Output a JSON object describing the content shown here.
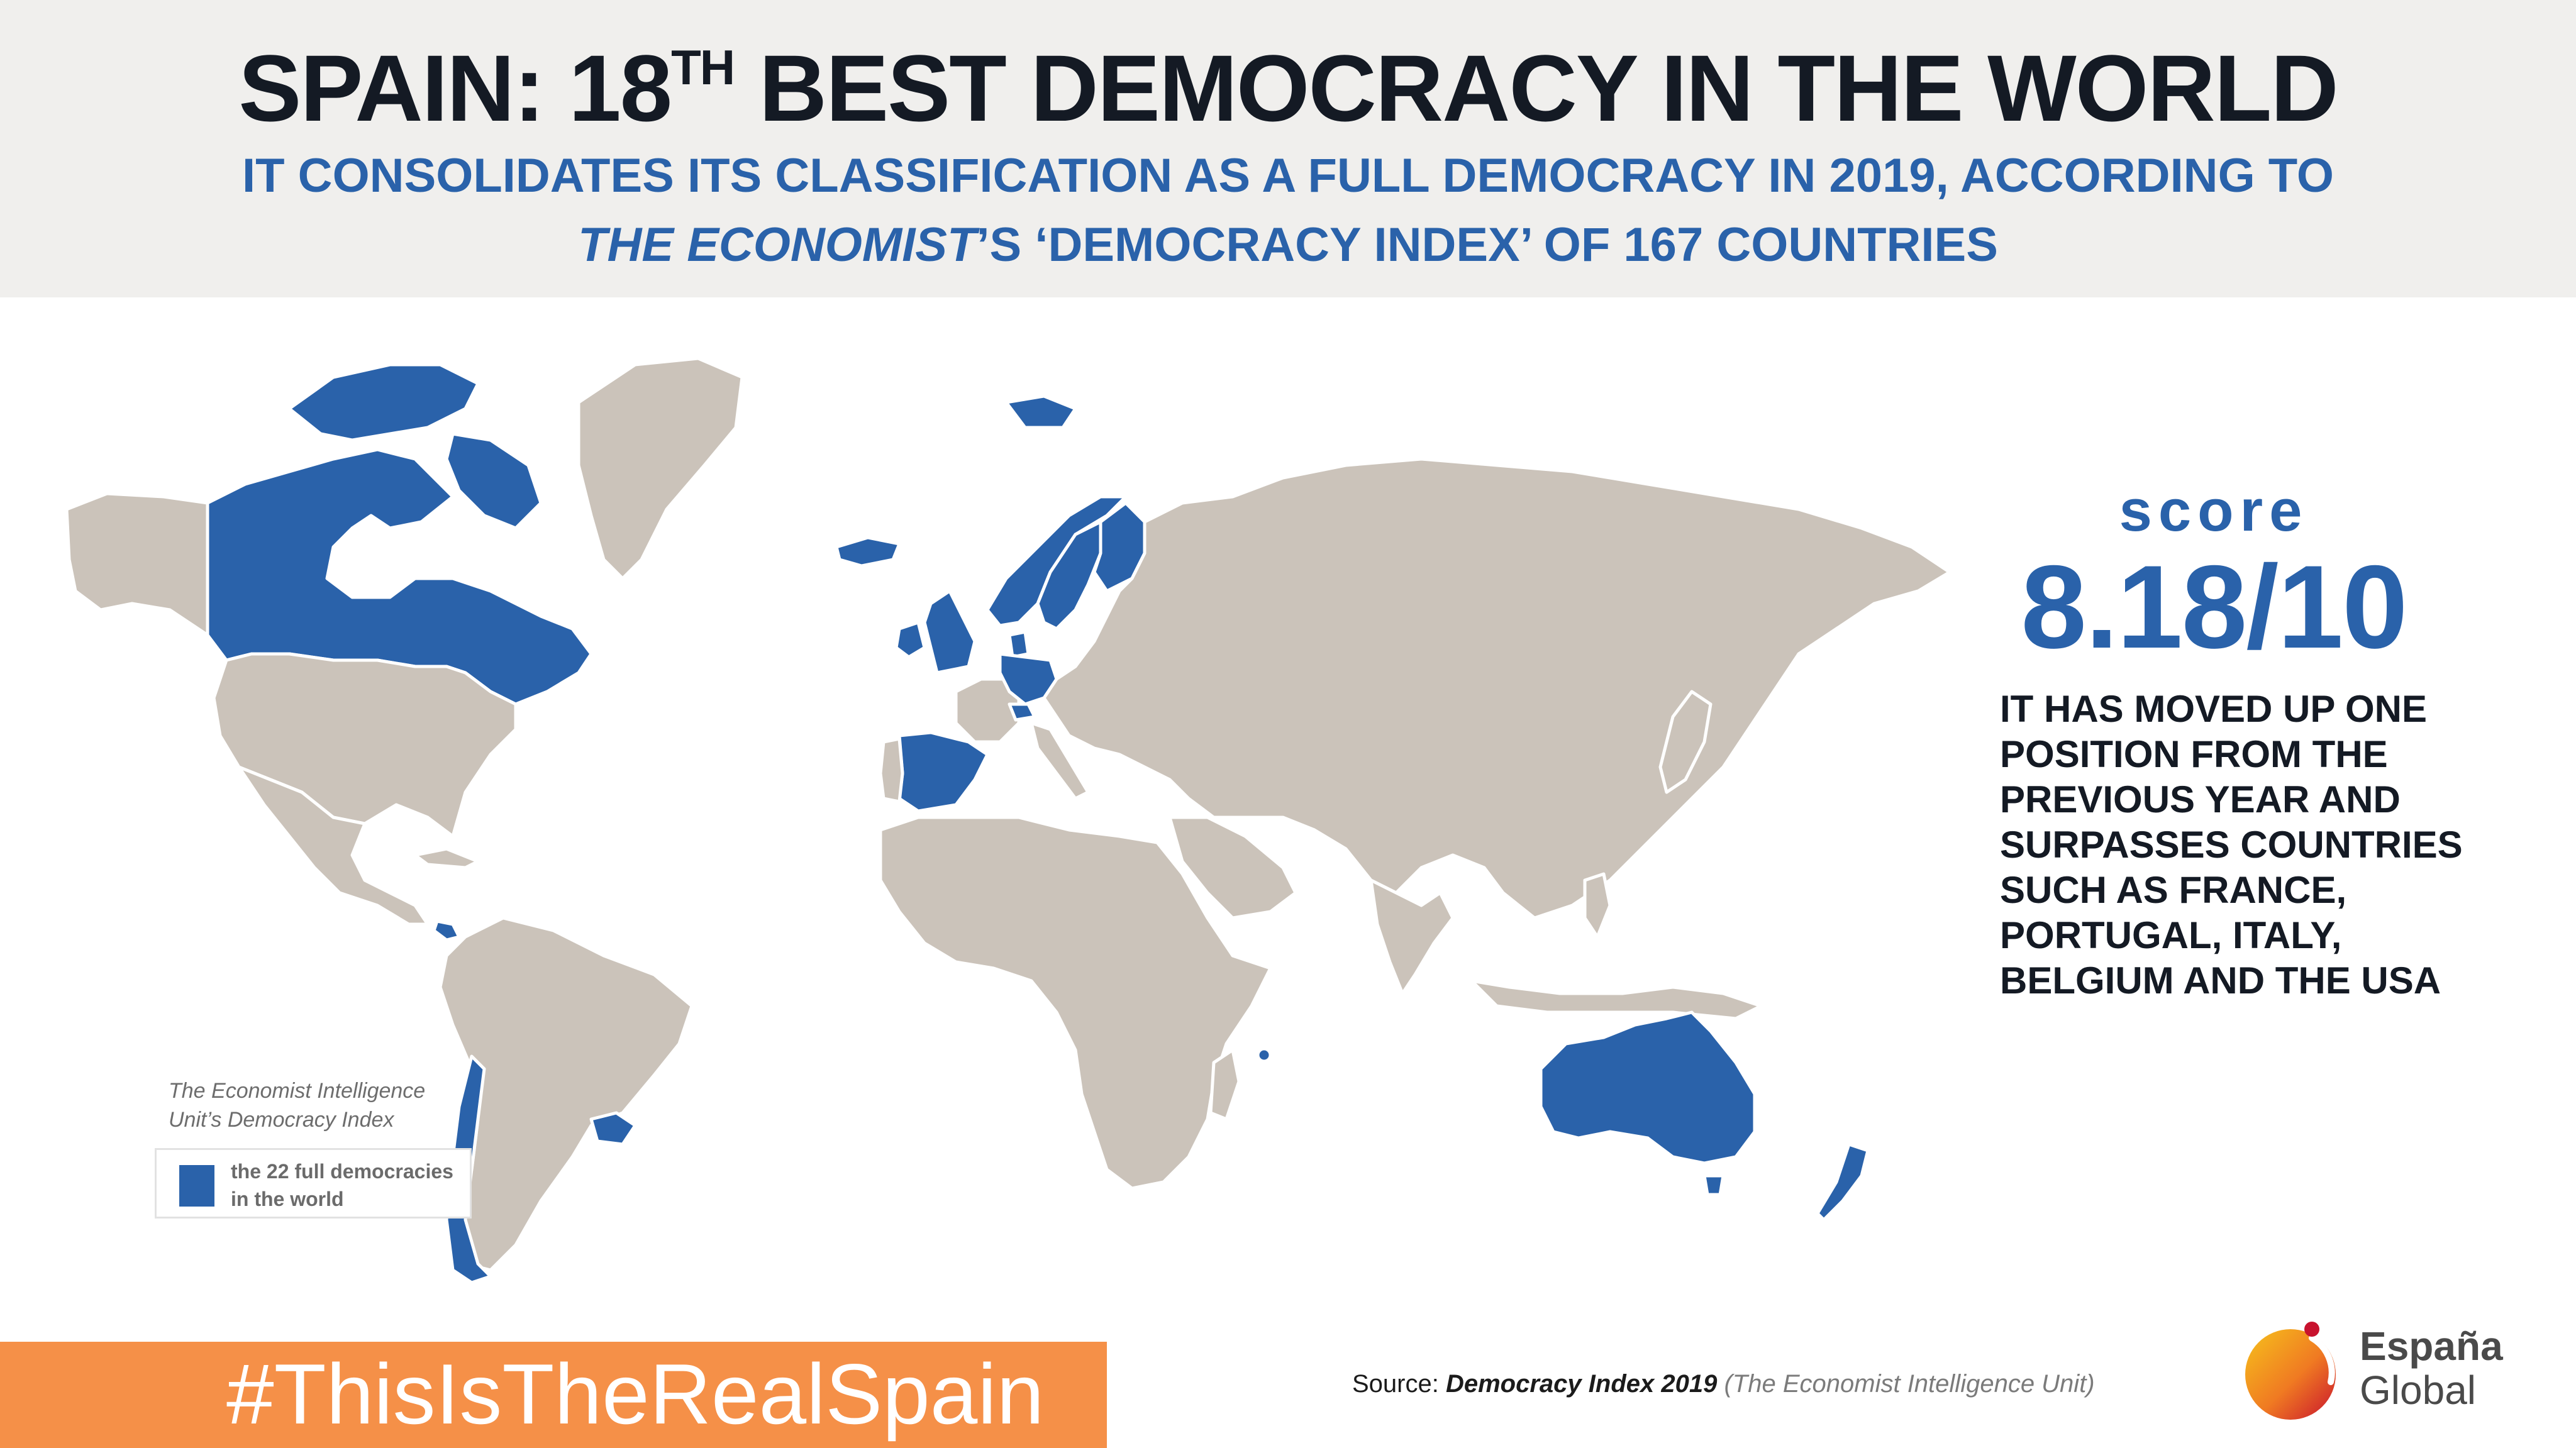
{
  "header": {
    "title_before_sup": "SPAIN: 18",
    "title_sup": "TH",
    "title_after_sup": " BEST DEMOCRACY IN THE WORLD",
    "subtitle_line1": "IT CONSOLIDATES ITS CLASSIFICATION AS A FULL DEMOCRACY IN 2019, ACCORDING TO",
    "subtitle_line2_italic": "THE ECONOMIST",
    "subtitle_line2_rest": "’S ‘DEMOCRACY INDEX’ OF 167 COUNTRIES"
  },
  "map": {
    "land_color": "#cbc3ba",
    "highlight_color": "#2a62aa",
    "highlighted_regions": [
      "canada",
      "greenland-islands",
      "iceland",
      "ireland",
      "united-kingdom",
      "norway",
      "sweden",
      "finland",
      "denmark",
      "netherlands",
      "germany",
      "switzerland",
      "luxembourg",
      "spain",
      "costa-rica",
      "uruguay",
      "chile",
      "mauritius",
      "australia",
      "new-zealand"
    ],
    "legend": {
      "caption_line1": "The Economist Intelligence",
      "caption_line2": "Unit’s Democracy Index",
      "label_line1": "the 22 full democracies",
      "label_line2": "in the world"
    }
  },
  "score": {
    "label": "score",
    "value": "8.18/10",
    "description_lines": [
      "IT HAS MOVED UP ONE",
      "POSITION FROM THE",
      "PREVIOUS YEAR AND",
      "SURPASSES COUNTRIES",
      "SUCH AS FRANCE,",
      "PORTUGAL, ITALY,",
      "BELGIUM AND THE USA"
    ]
  },
  "footer": {
    "hashtag": "#ThisIsTheRealSpain",
    "hashtag_bg": "#f59048",
    "source_label": "Source:",
    "source_title": "Democracy Index 2019",
    "source_org": "(The Economist Intelligence Unit)",
    "logo_line1": "España",
    "logo_line2": "Global"
  }
}
